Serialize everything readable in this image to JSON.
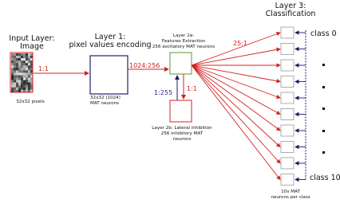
{
  "input_layer": {
    "title": [
      "Input Layer:",
      "Image"
    ],
    "caption": "32x32 pixels"
  },
  "layer1": {
    "title": "Layer 1:",
    "subtitle": "pixel values encoding",
    "caption": [
      "32x32 (1024)",
      "MAT neurons"
    ]
  },
  "layer2a": {
    "title": [
      "Layer 2a:",
      "Features Extraction",
      "256 excitatory MAT neurons"
    ]
  },
  "layer2b": {
    "title": [
      "Layer 2b: Lateral inhibition",
      "256 inhibitory MAT",
      "neurons"
    ]
  },
  "layer3": {
    "title": [
      "Layer 3:",
      "Classification"
    ],
    "first_class": "class 0",
    "last_class": "class 10",
    "caption": [
      "10x MAT",
      "neurons per class"
    ]
  },
  "connections": {
    "input_to_l1": "1:1",
    "l1_to_l2a": "1024:256",
    "l2a_to_l3": "25:1",
    "l2a_to_l2b": "1:1",
    "l2b_to_l2a": "1:255"
  }
}
